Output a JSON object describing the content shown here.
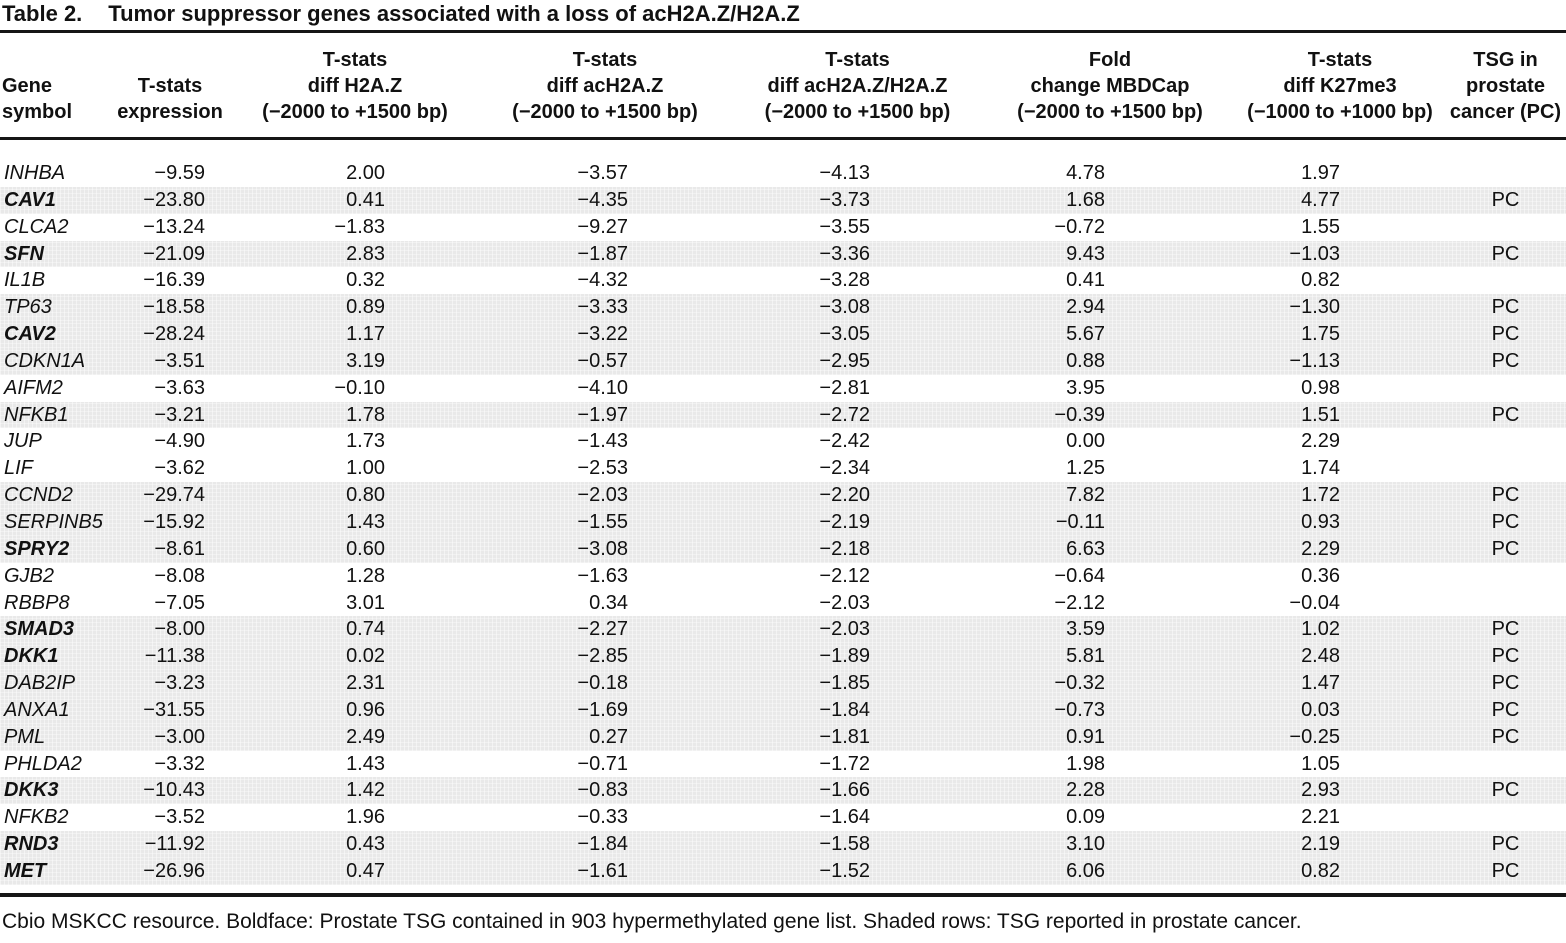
{
  "caption": {
    "label": "Table 2.",
    "text": "Tumor suppressor genes associated with a loss of acH2A.Z/H2A.Z"
  },
  "table": {
    "columns": [
      {
        "id": "gene_symbol",
        "label": "Gene\nsymbol"
      },
      {
        "id": "expression",
        "label": "T-stats\nexpression"
      },
      {
        "id": "diff_h2az",
        "label": "T-stats\ndiff H2A.Z\n(−2000 to +1500 bp)"
      },
      {
        "id": "diff_ach2az",
        "label": "T-stats\ndiff acH2A.Z\n(−2000 to +1500 bp)"
      },
      {
        "id": "diff_ratio",
        "label": "T-stats\ndiff acH2A.Z/H2A.Z\n(−2000 to +1500 bp)"
      },
      {
        "id": "fold_mbdcap",
        "label": "Fold\nchange MBDCap\n(−2000 to +1500 bp)"
      },
      {
        "id": "diff_k27me3",
        "label": "T-stats\ndiff K27me3\n(−1000 to +1000 bp)"
      },
      {
        "id": "tsg_pc",
        "label": "TSG in\nprostate\ncancer (PC)"
      }
    ],
    "rows": [
      {
        "gene": "INHBA",
        "bold": false,
        "shaded": false,
        "values": [
          "−9.59",
          "2.00",
          "−3.57",
          "−4.13",
          "4.78",
          "1.97"
        ],
        "pc": ""
      },
      {
        "gene": "CAV1",
        "bold": true,
        "shaded": true,
        "values": [
          "−23.80",
          "0.41",
          "−4.35",
          "−3.73",
          "1.68",
          "4.77"
        ],
        "pc": "PC"
      },
      {
        "gene": "CLCA2",
        "bold": false,
        "shaded": false,
        "values": [
          "−13.24",
          "−1.83",
          "−9.27",
          "−3.55",
          "−0.72",
          "1.55"
        ],
        "pc": ""
      },
      {
        "gene": "SFN",
        "bold": true,
        "shaded": true,
        "values": [
          "−21.09",
          "2.83",
          "−1.87",
          "−3.36",
          "9.43",
          "−1.03"
        ],
        "pc": "PC"
      },
      {
        "gene": "IL1B",
        "bold": false,
        "shaded": false,
        "values": [
          "−16.39",
          "0.32",
          "−4.32",
          "−3.28",
          "0.41",
          "0.82"
        ],
        "pc": ""
      },
      {
        "gene": "TP63",
        "bold": false,
        "shaded": true,
        "values": [
          "−18.58",
          "0.89",
          "−3.33",
          "−3.08",
          "2.94",
          "−1.30"
        ],
        "pc": "PC"
      },
      {
        "gene": "CAV2",
        "bold": true,
        "shaded": true,
        "values": [
          "−28.24",
          "1.17",
          "−3.22",
          "−3.05",
          "5.67",
          "1.75"
        ],
        "pc": "PC"
      },
      {
        "gene": "CDKN1A",
        "bold": false,
        "shaded": true,
        "values": [
          "−3.51",
          "3.19",
          "−0.57",
          "−2.95",
          "0.88",
          "−1.13"
        ],
        "pc": "PC"
      },
      {
        "gene": "AIFM2",
        "bold": false,
        "shaded": false,
        "values": [
          "−3.63",
          "−0.10",
          "−4.10",
          "−2.81",
          "3.95",
          "0.98"
        ],
        "pc": ""
      },
      {
        "gene": "NFKB1",
        "bold": false,
        "shaded": true,
        "values": [
          "−3.21",
          "1.78",
          "−1.97",
          "−2.72",
          "−0.39",
          "1.51"
        ],
        "pc": "PC"
      },
      {
        "gene": "JUP",
        "bold": false,
        "shaded": false,
        "values": [
          "−4.90",
          "1.73",
          "−1.43",
          "−2.42",
          "0.00",
          "2.29"
        ],
        "pc": ""
      },
      {
        "gene": "LIF",
        "bold": false,
        "shaded": false,
        "values": [
          "−3.62",
          "1.00",
          "−2.53",
          "−2.34",
          "1.25",
          "1.74"
        ],
        "pc": ""
      },
      {
        "gene": "CCND2",
        "bold": false,
        "shaded": true,
        "values": [
          "−29.74",
          "0.80",
          "−2.03",
          "−2.20",
          "7.82",
          "1.72"
        ],
        "pc": "PC"
      },
      {
        "gene": "SERPINB5",
        "bold": false,
        "shaded": true,
        "values": [
          "−15.92",
          "1.43",
          "−1.55",
          "−2.19",
          "−0.11",
          "0.93"
        ],
        "pc": "PC"
      },
      {
        "gene": "SPRY2",
        "bold": true,
        "shaded": true,
        "values": [
          "−8.61",
          "0.60",
          "−3.08",
          "−2.18",
          "6.63",
          "2.29"
        ],
        "pc": "PC"
      },
      {
        "gene": "GJB2",
        "bold": false,
        "shaded": false,
        "values": [
          "−8.08",
          "1.28",
          "−1.63",
          "−2.12",
          "−0.64",
          "0.36"
        ],
        "pc": ""
      },
      {
        "gene": "RBBP8",
        "bold": false,
        "shaded": false,
        "values": [
          "−7.05",
          "3.01",
          "0.34",
          "−2.03",
          "−2.12",
          "−0.04"
        ],
        "pc": ""
      },
      {
        "gene": "SMAD3",
        "bold": true,
        "shaded": true,
        "values": [
          "−8.00",
          "0.74",
          "−2.27",
          "−2.03",
          "3.59",
          "1.02"
        ],
        "pc": "PC"
      },
      {
        "gene": "DKK1",
        "bold": true,
        "shaded": true,
        "values": [
          "−11.38",
          "0.02",
          "−2.85",
          "−1.89",
          "5.81",
          "2.48"
        ],
        "pc": "PC"
      },
      {
        "gene": "DAB2IP",
        "bold": false,
        "shaded": true,
        "values": [
          "−3.23",
          "2.31",
          "−0.18",
          "−1.85",
          "−0.32",
          "1.47"
        ],
        "pc": "PC"
      },
      {
        "gene": "ANXA1",
        "bold": false,
        "shaded": true,
        "values": [
          "−31.55",
          "0.96",
          "−1.69",
          "−1.84",
          "−0.73",
          "0.03"
        ],
        "pc": "PC"
      },
      {
        "gene": "PML",
        "bold": false,
        "shaded": true,
        "values": [
          "−3.00",
          "2.49",
          "0.27",
          "−1.81",
          "0.91",
          "−0.25"
        ],
        "pc": "PC"
      },
      {
        "gene": "PHLDA2",
        "bold": false,
        "shaded": false,
        "values": [
          "−3.32",
          "1.43",
          "−0.71",
          "−1.72",
          "1.98",
          "1.05"
        ],
        "pc": ""
      },
      {
        "gene": "DKK3",
        "bold": true,
        "shaded": true,
        "values": [
          "−10.43",
          "1.42",
          "−0.83",
          "−1.66",
          "2.28",
          "2.93"
        ],
        "pc": "PC"
      },
      {
        "gene": "NFKB2",
        "bold": false,
        "shaded": false,
        "values": [
          "−3.52",
          "1.96",
          "−0.33",
          "−1.64",
          "0.09",
          "2.21"
        ],
        "pc": ""
      },
      {
        "gene": "RND3",
        "bold": true,
        "shaded": true,
        "values": [
          "−11.92",
          "0.43",
          "−1.84",
          "−1.58",
          "3.10",
          "2.19"
        ],
        "pc": "PC"
      },
      {
        "gene": "MET",
        "bold": true,
        "shaded": true,
        "values": [
          "−26.96",
          "0.47",
          "−1.61",
          "−1.52",
          "6.06",
          "0.82"
        ],
        "pc": "PC"
      }
    ]
  },
  "footnote": "Cbio MSKCC resource. Boldface: Prostate TSG contained in 903 hypermethylated gene list. Shaded rows: TSG reported in prostate cancer."
}
